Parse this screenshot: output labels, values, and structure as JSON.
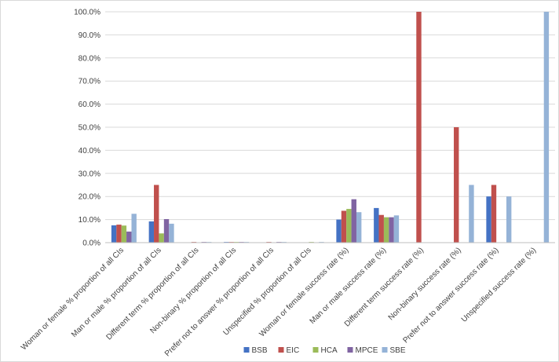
{
  "chart_data": {
    "type": "bar",
    "title": "",
    "xlabel": "",
    "ylabel": "",
    "ylim": [
      0,
      100
    ],
    "y_ticks": [
      "0.0%",
      "10.0%",
      "20.0%",
      "30.0%",
      "40.0%",
      "50.0%",
      "60.0%",
      "70.0%",
      "80.0%",
      "90.0%",
      "100.0%"
    ],
    "grid": "horizontal",
    "legend_position": "bottom",
    "categories": [
      "Woman or female % proportion of all CIs",
      "Man or male  % proportion of all CIs",
      "Different term % proportion of all CIs",
      "Non-binary % proportion of all CIs",
      "Prefer not to answer % proportion of all CIs",
      "Unspecified % proportion of all CIs",
      "Woman or female success rate (%)",
      "Man or male success rate (%)",
      "Different term success rate (%)",
      "Non-binary success rate (%)",
      "Prefer not to answer success rate (%)",
      "Unspecified success rate (%)"
    ],
    "series": [
      {
        "name": "BSB",
        "color": "#4472C4",
        "values": [
          7.5,
          9.2,
          0,
          0.3,
          0,
          0,
          10,
          15,
          0,
          0,
          20,
          0
        ]
      },
      {
        "name": "EIC",
        "color": "#C0504D",
        "values": [
          7.8,
          25,
          0.3,
          0.3,
          0.3,
          0,
          13.8,
          12,
          100,
          50,
          25,
          0
        ]
      },
      {
        "name": "HCA",
        "color": "#9BBB59",
        "values": [
          7.4,
          4,
          0,
          0.3,
          0,
          0.3,
          14.6,
          11,
          0,
          0,
          0,
          0
        ]
      },
      {
        "name": "MPCE",
        "color": "#8064A2",
        "values": [
          4.8,
          10.2,
          0.3,
          0.3,
          0.3,
          0,
          18.8,
          11,
          0,
          0,
          0,
          0
        ]
      },
      {
        "name": "SBE",
        "color": "#95B3D7",
        "values": [
          12.5,
          8.2,
          0.3,
          0.3,
          0.3,
          0.3,
          13.2,
          11.8,
          0,
          25,
          20,
          100
        ]
      }
    ]
  }
}
